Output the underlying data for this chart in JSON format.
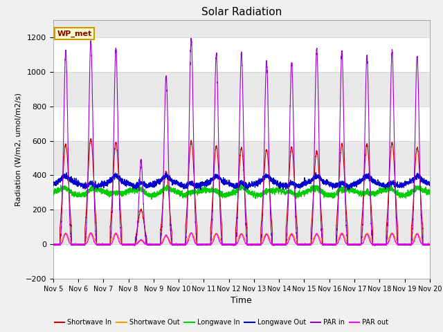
{
  "title": "Solar Radiation",
  "ylabel": "Radiation (W/m2, umol/m2/s)",
  "xlabel": "Time",
  "ylim": [
    -200,
    1300
  ],
  "yticks": [
    -200,
    0,
    200,
    400,
    600,
    800,
    1000,
    1200
  ],
  "fig_bg_color": "#f0f0f0",
  "plot_bg_color": "#e8e8e8",
  "legend_label": "WP_met",
  "series": {
    "shortwave_in": {
      "color": "#cc0000",
      "label": "Shortwave In",
      "lw": 0.8
    },
    "shortwave_out": {
      "color": "#ff9900",
      "label": "Shortwave Out",
      "lw": 0.8
    },
    "longwave_in": {
      "color": "#00cc00",
      "label": "Longwave In",
      "lw": 0.8
    },
    "longwave_out": {
      "color": "#0000cc",
      "label": "Longwave Out",
      "lw": 0.8
    },
    "par_in": {
      "color": "#9900cc",
      "label": "PAR in",
      "lw": 0.8
    },
    "par_out": {
      "color": "#ff00ff",
      "label": "PAR out",
      "lw": 0.8
    }
  },
  "num_days": 15,
  "pts_per_day": 288,
  "start_day": 5,
  "band_colors": [
    "#ffffff",
    "#e8e8e8"
  ],
  "day_peaks_sw": [
    580,
    610,
    590,
    200,
    420,
    600,
    570,
    560,
    550,
    560,
    540,
    580,
    580,
    590,
    560
  ],
  "day_peaks_par": [
    1120,
    1170,
    1130,
    480,
    970,
    1190,
    1100,
    1100,
    1060,
    1050,
    1130,
    1120,
    1090,
    1120,
    1090
  ],
  "lw_in_base": 300,
  "lw_out_base": 350,
  "grid_color": "#cccccc",
  "grid_lw": 0.5
}
